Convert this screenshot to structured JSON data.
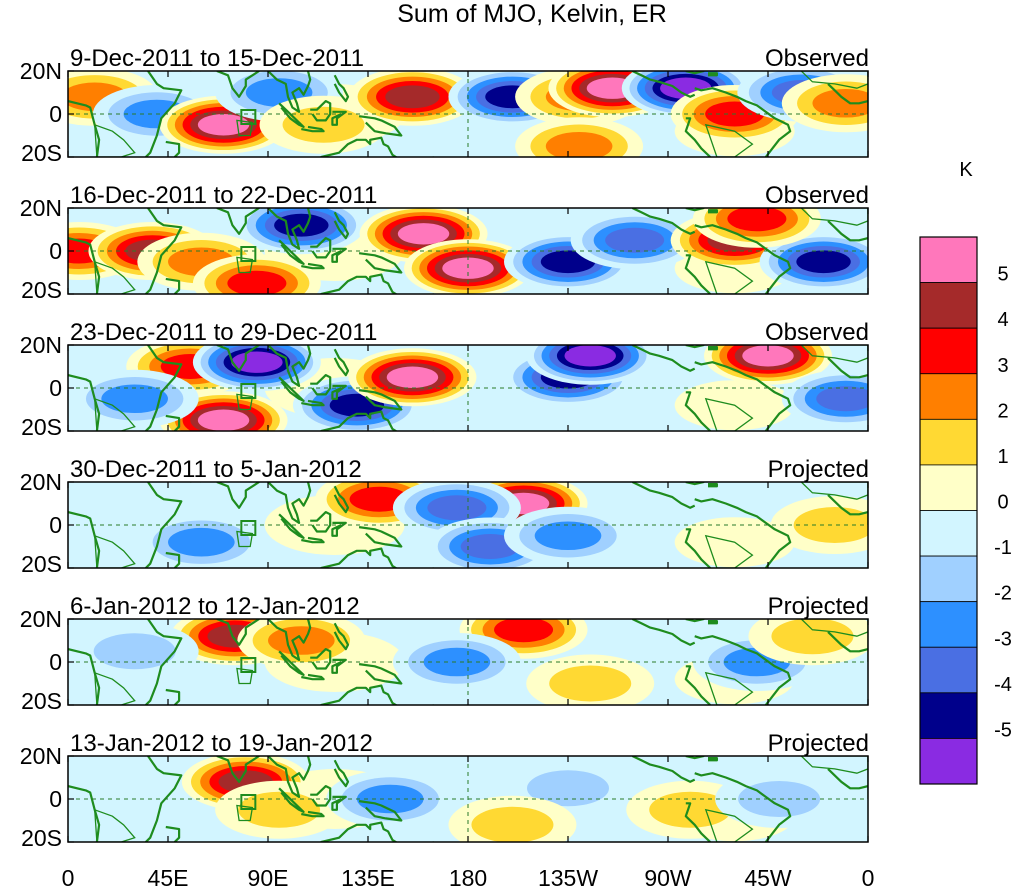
{
  "chart_data": {
    "type": "heatmap",
    "title": "Sum of MJO, Kelvin, ER",
    "units": "K",
    "xlim": [
      0,
      360
    ],
    "ylim": [
      -20,
      20
    ],
    "x_ticks": [
      {
        "lon": 0,
        "label": "0"
      },
      {
        "lon": 45,
        "label": "45E"
      },
      {
        "lon": 90,
        "label": "90E"
      },
      {
        "lon": 135,
        "label": "135E"
      },
      {
        "lon": 180,
        "label": "180"
      },
      {
        "lon": 225,
        "label": "135W"
      },
      {
        "lon": 270,
        "label": "90W"
      },
      {
        "lon": 315,
        "label": "45W"
      },
      {
        "lon": 360,
        "label": "0"
      }
    ],
    "y_ticks": [
      {
        "lat": 20,
        "label": "20N"
      },
      {
        "lat": 0,
        "label": "0"
      },
      {
        "lat": -20,
        "label": "20S"
      }
    ],
    "levels": [
      5,
      4,
      3,
      2,
      1,
      0,
      -1,
      -2,
      -3,
      -4,
      -5
    ],
    "level_labels": [
      "5",
      "4",
      "3",
      "2",
      "1",
      "0",
      "-1",
      "-2",
      "-3",
      "-4",
      "-5"
    ],
    "colors": [
      "#ff77bb",
      "#a52a2a",
      "#ff0000",
      "#ff7f00",
      "#ffd933",
      "#ffffc8",
      "#d2f5ff",
      "#a0d0ff",
      "#2d90ff",
      "#4a6fe3",
      "#00008b",
      "#8a2be2"
    ],
    "panels": [
      {
        "period": "9-Dec-2011 to 15-Dec-2011",
        "kind": "Observed",
        "anomalies": [
          {
            "lon": 12,
            "lat": 8,
            "value": 2.5
          },
          {
            "lon": 40,
            "lat": 0,
            "value": -2.5
          },
          {
            "lon": 70,
            "lat": -5,
            "value": 5.5
          },
          {
            "lon": 95,
            "lat": 10,
            "value": -2.5
          },
          {
            "lon": 115,
            "lat": -5,
            "value": 1.5
          },
          {
            "lon": 155,
            "lat": 8,
            "value": 4.5
          },
          {
            "lon": 200,
            "lat": 8,
            "value": -4.5
          },
          {
            "lon": 230,
            "lat": 8,
            "value": 2.5
          },
          {
            "lon": 245,
            "lat": 12,
            "value": 5.5
          },
          {
            "lon": 278,
            "lat": 12,
            "value": -5.5
          },
          {
            "lon": 300,
            "lat": 0,
            "value": 3.5
          },
          {
            "lon": 330,
            "lat": 10,
            "value": -3.5
          },
          {
            "lon": 350,
            "lat": 5,
            "value": 2.5
          },
          {
            "lon": 230,
            "lat": -15,
            "value": 2.5
          }
        ]
      },
      {
        "period": "16-Dec-2011 to 22-Dec-2011",
        "kind": "Observed",
        "anomalies": [
          {
            "lon": 5,
            "lat": 0,
            "value": 3.5
          },
          {
            "lon": 38,
            "lat": 0,
            "value": 4.5
          },
          {
            "lon": 60,
            "lat": -5,
            "value": 2.5
          },
          {
            "lon": 105,
            "lat": 12,
            "value": -4.5
          },
          {
            "lon": 85,
            "lat": -15,
            "value": 3.5
          },
          {
            "lon": 160,
            "lat": 8,
            "value": 5.5
          },
          {
            "lon": 180,
            "lat": -8,
            "value": 5.5
          },
          {
            "lon": 225,
            "lat": -5,
            "value": -4.5
          },
          {
            "lon": 255,
            "lat": 5,
            "value": -3.5
          },
          {
            "lon": 300,
            "lat": 5,
            "value": 4.5
          },
          {
            "lon": 340,
            "lat": -5,
            "value": -4.5
          },
          {
            "lon": 310,
            "lat": 15,
            "value": 3.5
          }
        ]
      },
      {
        "period": "23-Dec-2011 to 29-Dec-2011",
        "kind": "Observed",
        "anomalies": [
          {
            "lon": 55,
            "lat": 10,
            "value": 3.5
          },
          {
            "lon": 85,
            "lat": 12,
            "value": -5.5
          },
          {
            "lon": 70,
            "lat": -15,
            "value": 5.5
          },
          {
            "lon": 130,
            "lat": -8,
            "value": -4.5
          },
          {
            "lon": 155,
            "lat": 5,
            "value": 5.5
          },
          {
            "lon": 225,
            "lat": 5,
            "value": -4.5
          },
          {
            "lon": 235,
            "lat": 15,
            "value": -5.5
          },
          {
            "lon": 315,
            "lat": 15,
            "value": 5.5
          },
          {
            "lon": 350,
            "lat": -5,
            "value": -3.5
          },
          {
            "lon": 30,
            "lat": -5,
            "value": -2.5
          }
        ]
      },
      {
        "period": "30-Dec-2011 to 5-Jan-2012",
        "kind": "Projected",
        "anomalies": [
          {
            "lon": 140,
            "lat": 12,
            "value": 3.5
          },
          {
            "lon": 205,
            "lat": 10,
            "value": 5.5
          },
          {
            "lon": 175,
            "lat": 8,
            "value": -3.5
          },
          {
            "lon": 60,
            "lat": -8,
            "value": -2.5
          },
          {
            "lon": 190,
            "lat": -10,
            "value": -3.5
          },
          {
            "lon": 225,
            "lat": -5,
            "value": -2.5
          },
          {
            "lon": 345,
            "lat": 0,
            "value": 1.5
          }
        ]
      },
      {
        "period": "6-Jan-2012 to 12-Jan-2012",
        "kind": "Projected",
        "anomalies": [
          {
            "lon": 75,
            "lat": 12,
            "value": 4.5
          },
          {
            "lon": 105,
            "lat": 10,
            "value": 2.5
          },
          {
            "lon": 205,
            "lat": 15,
            "value": 3.5
          },
          {
            "lon": 175,
            "lat": 0,
            "value": -2.5
          },
          {
            "lon": 310,
            "lat": 0,
            "value": -2.5
          },
          {
            "lon": 335,
            "lat": 12,
            "value": 1.5
          },
          {
            "lon": 30,
            "lat": 5,
            "value": -1.5
          },
          {
            "lon": 235,
            "lat": -10,
            "value": 1.5
          }
        ]
      },
      {
        "period": "13-Jan-2012 to 19-Jan-2012",
        "kind": "Projected",
        "anomalies": [
          {
            "lon": 80,
            "lat": 8,
            "value": 4.5
          },
          {
            "lon": 95,
            "lat": -5,
            "value": 1.5
          },
          {
            "lon": 145,
            "lat": 0,
            "value": -2.5
          },
          {
            "lon": 225,
            "lat": 5,
            "value": -1.5
          },
          {
            "lon": 280,
            "lat": -5,
            "value": 1.5
          },
          {
            "lon": 320,
            "lat": 0,
            "value": -1.5
          },
          {
            "lon": 200,
            "lat": -12,
            "value": 1.5
          }
        ]
      }
    ]
  }
}
